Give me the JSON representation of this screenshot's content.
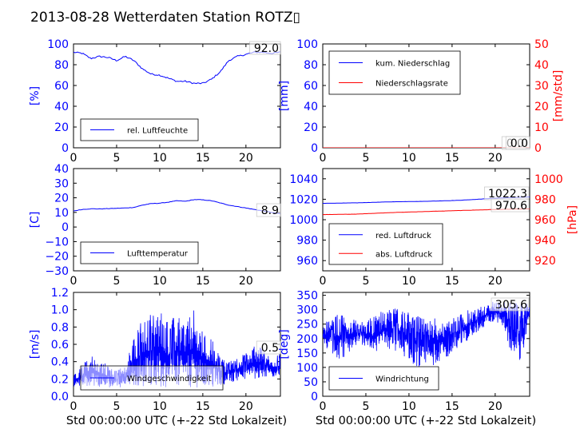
{
  "title": "2013-08-28 Wetterdaten Station ROTZ▯",
  "xlabel": "Std 00:00:00 UTC (+-22 Std Lokalzeit)",
  "colors": {
    "primary": "#0000ff",
    "secondary": "#ff0000"
  },
  "x_ticks": [
    "0",
    "5",
    "10",
    "15",
    "20"
  ],
  "chart_data": [
    {
      "id": "humidity",
      "type": "line",
      "xlim": [
        0,
        24
      ],
      "ylim": [
        0,
        100
      ],
      "ylabel": "[%]",
      "y_ticks": [
        "0",
        "20",
        "40",
        "60",
        "80",
        "100"
      ],
      "legend": {
        "placement": "lower-left",
        "entries": [
          "rel. Luftfeuchte"
        ]
      },
      "last_value": "92.0",
      "series": [
        {
          "name": "rel. Luftfeuchte",
          "color": "#0000ff",
          "x": [
            0,
            1,
            2,
            3,
            4,
            5,
            6,
            7,
            8,
            9,
            10,
            11,
            12,
            13,
            14,
            15,
            16,
            17,
            18,
            19,
            20,
            21,
            22,
            23,
            24
          ],
          "y": [
            92,
            91,
            86,
            88,
            87,
            84,
            88,
            84,
            76,
            71,
            70,
            67,
            64,
            64,
            62,
            62,
            66,
            73,
            84,
            88,
            90,
            92,
            92,
            91,
            92
          ]
        }
      ]
    },
    {
      "id": "precipitation",
      "type": "line",
      "xlim": [
        0,
        24
      ],
      "ylim": [
        0,
        100
      ],
      "ylim2": [
        0,
        50
      ],
      "ylabel": "[mm]",
      "ylabel2": "[mm/std]",
      "y_ticks": [
        "0",
        "20",
        "40",
        "60",
        "80",
        "100"
      ],
      "y2_ticks": [
        "0",
        "10",
        "20",
        "30",
        "40",
        "50"
      ],
      "legend": {
        "placement": "upper-left",
        "entries": [
          "kum. Niederschlag",
          "Niederschlagsrate"
        ]
      },
      "last_value": "0.0",
      "last_value2": "0.0",
      "series": [
        {
          "name": "kum. Niederschlag",
          "color": "#0000ff",
          "axis": "left",
          "x": [
            0,
            24
          ],
          "y": [
            0,
            0
          ]
        },
        {
          "name": "Niederschlagsrate",
          "color": "#ff0000",
          "axis": "right",
          "x": [
            0,
            24
          ],
          "y": [
            0,
            0
          ]
        }
      ]
    },
    {
      "id": "temperature",
      "type": "line",
      "xlim": [
        0,
        24
      ],
      "ylim": [
        -30,
        40
      ],
      "ylabel": "[C]",
      "y_ticks": [
        "−30",
        "−20",
        "−10",
        "0",
        "10",
        "20",
        "30",
        "40"
      ],
      "legend": {
        "placement": "lower-left",
        "entries": [
          "Lufttemperatur"
        ]
      },
      "last_value": "8.9",
      "series": [
        {
          "name": "Lufttemperatur",
          "color": "#0000ff",
          "x": [
            0,
            1,
            2,
            3,
            4,
            5,
            6,
            7,
            8,
            9,
            10,
            11,
            12,
            13,
            14,
            15,
            16,
            17,
            18,
            19,
            20,
            21,
            22,
            23,
            24
          ],
          "y": [
            11,
            12,
            12.5,
            12.4,
            12.6,
            12.8,
            13,
            13.4,
            15,
            16,
            16.3,
            17,
            18,
            17.6,
            18.8,
            18.6,
            18,
            16.5,
            15,
            14,
            13,
            12,
            11,
            10,
            9
          ]
        }
      ]
    },
    {
      "id": "pressure",
      "type": "line",
      "xlim": [
        0,
        24
      ],
      "ylim": [
        950,
        1050
      ],
      "ylim2": [
        910,
        1010
      ],
      "ylabel2": "[hPa]",
      "y_ticks": [
        "960",
        "980",
        "1000",
        "1020",
        "1040"
      ],
      "y2_ticks": [
        "920",
        "940",
        "960",
        "980",
        "1000"
      ],
      "legend": {
        "placement": "lower-left",
        "entries": [
          "red. Luftdruck",
          "abs. Luftdruck"
        ]
      },
      "last_value": "1022.3",
      "last_value2": "970.6",
      "series": [
        {
          "name": "red. Luftdruck",
          "color": "#0000ff",
          "axis": "left",
          "x": [
            0,
            4,
            8,
            12,
            16,
            20,
            24
          ],
          "y": [
            1016,
            1016.5,
            1017.5,
            1018,
            1019,
            1021,
            1022.3
          ]
        },
        {
          "name": "abs. Luftdruck",
          "color": "#ff0000",
          "axis": "right",
          "x": [
            0,
            4,
            8,
            12,
            16,
            20,
            24
          ],
          "y": [
            965,
            965.5,
            967,
            968,
            969,
            970,
            970.6
          ]
        }
      ]
    },
    {
      "id": "windspeed",
      "type": "line",
      "xlim": [
        0,
        24
      ],
      "ylim": [
        0,
        1.2
      ],
      "ylabel": "[m/s]",
      "y_ticks": [
        "0.0",
        "0.2",
        "0.4",
        "0.6",
        "0.8",
        "1.0",
        "1.2"
      ],
      "legend": {
        "placement": "lower-left",
        "entries": [
          "Windgeschwindigkeit"
        ]
      },
      "last_value": "0.5",
      "series": [
        {
          "name": "Windgeschwindigkeit",
          "color": "#0000ff",
          "x": [
            0,
            1,
            2,
            3,
            4,
            5,
            6,
            7,
            8,
            9,
            10,
            11,
            12,
            13,
            14,
            15,
            16,
            17,
            18,
            19,
            20,
            21,
            22,
            23,
            24
          ],
          "y_low": [
            0.1,
            0.12,
            0.12,
            0.1,
            0.1,
            0.1,
            0.1,
            0.1,
            0.1,
            0.1,
            0.1,
            0.1,
            0.1,
            0.1,
            0.1,
            0.1,
            0.1,
            0.12,
            0.15,
            0.18,
            0.2,
            0.2,
            0.2,
            0.22,
            0.2
          ],
          "y_high": [
            0.25,
            0.35,
            0.5,
            0.45,
            0.35,
            0.3,
            0.35,
            0.7,
            0.9,
            0.95,
            1.05,
            0.85,
            0.95,
            0.9,
            1.0,
            0.75,
            0.7,
            0.45,
            0.4,
            0.45,
            0.5,
            0.6,
            0.55,
            0.45,
            0.5
          ]
        }
      ]
    },
    {
      "id": "winddirection",
      "type": "line",
      "xlim": [
        0,
        24
      ],
      "ylim": [
        0,
        360
      ],
      "ylabel": "[deg]",
      "y_ticks": [
        "0",
        "50",
        "100",
        "150",
        "200",
        "250",
        "300",
        "350"
      ],
      "legend": {
        "placement": "lower-left",
        "entries": [
          "Windrichtung"
        ]
      },
      "last_value": "305.6",
      "series": [
        {
          "name": "Windrichtung",
          "color": "#0000ff",
          "x": [
            0,
            1,
            2,
            3,
            4,
            5,
            6,
            7,
            8,
            9,
            10,
            11,
            12,
            13,
            14,
            15,
            16,
            17,
            18,
            19,
            20,
            21,
            22,
            23,
            24
          ],
          "y_low": [
            180,
            150,
            120,
            150,
            180,
            170,
            130,
            170,
            160,
            150,
            120,
            100,
            90,
            110,
            130,
            140,
            170,
            200,
            220,
            250,
            260,
            240,
            120,
            100,
            280
          ],
          "y_high": [
            250,
            270,
            290,
            280,
            260,
            260,
            280,
            300,
            310,
            300,
            290,
            280,
            270,
            280,
            260,
            270,
            290,
            300,
            310,
            320,
            330,
            330,
            330,
            320,
            330
          ]
        }
      ]
    }
  ]
}
